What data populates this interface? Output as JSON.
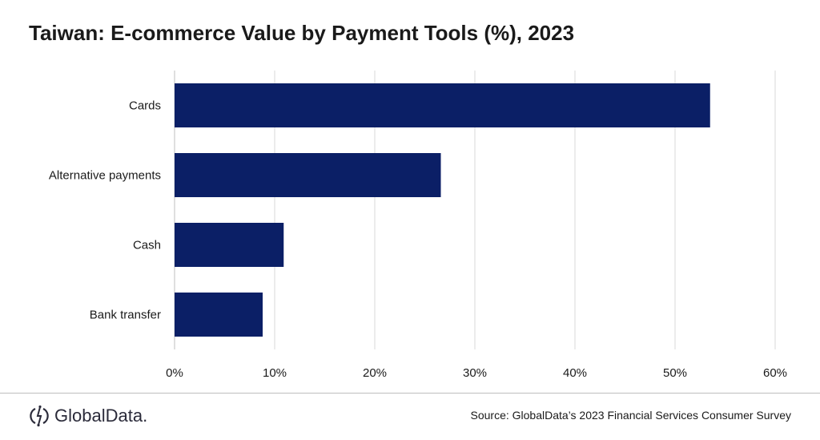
{
  "chart_data": {
    "type": "bar",
    "orientation": "horizontal",
    "title": "Taiwan: E-commerce Value by Payment Tools (%), 2023",
    "categories": [
      "Cards",
      "Alternative payments",
      "Cash",
      "Bank transfer"
    ],
    "values": [
      53.5,
      26.6,
      10.9,
      8.8
    ],
    "xlabel": "",
    "ylabel": "",
    "xlim": [
      0,
      60
    ],
    "x_ticks": [
      "0%",
      "10%",
      "20%",
      "30%",
      "40%",
      "50%",
      "60%"
    ],
    "grid": "vertical",
    "bar_color": "#0b1f66",
    "grid_color": "#d9d9d9"
  },
  "footer": {
    "logo": "GlobalData.",
    "source": "Source: GlobalData’s 2023 Financial Services Consumer Survey"
  }
}
